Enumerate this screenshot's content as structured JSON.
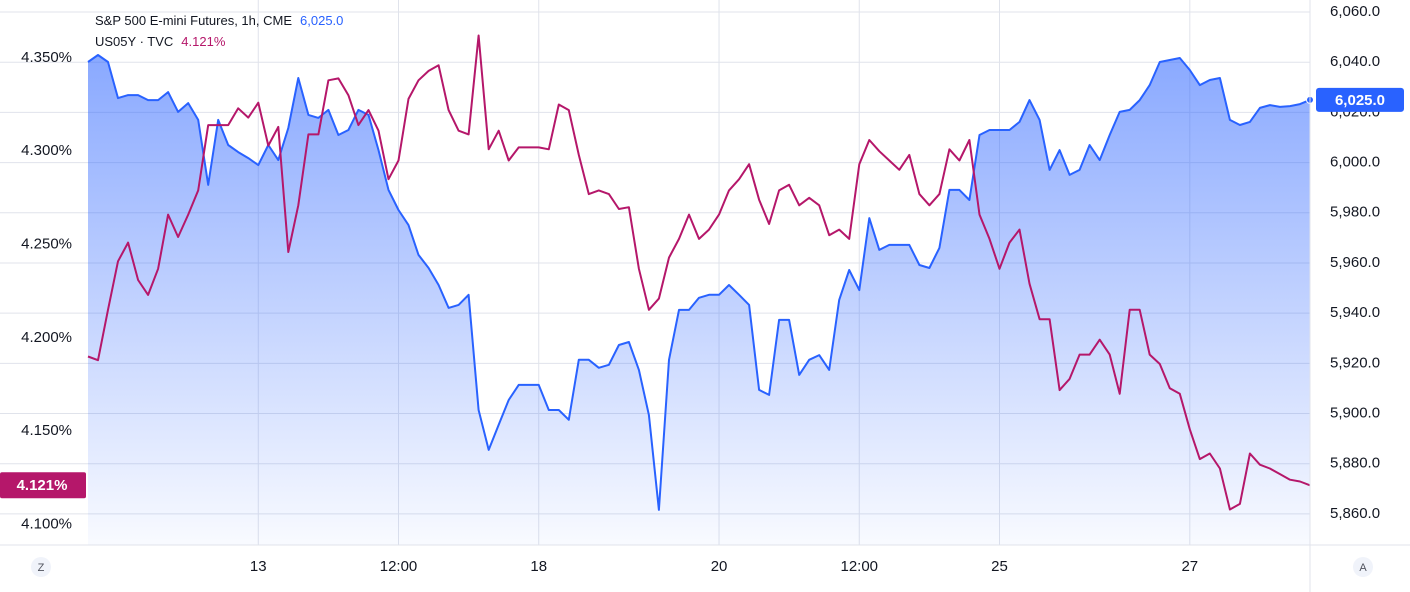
{
  "chart_data": {
    "type": "line",
    "categories": [
      null,
      null,
      null,
      null,
      null,
      null,
      null,
      null,
      null,
      null,
      null,
      null,
      null,
      null,
      null,
      null,
      null,
      "13",
      null,
      null,
      null,
      null,
      null,
      null,
      null,
      null,
      null,
      null,
      null,
      null,
      null,
      "12:00",
      null,
      null,
      null,
      null,
      null,
      null,
      null,
      null,
      null,
      null,
      null,
      null,
      null,
      "18",
      null,
      null,
      null,
      null,
      null,
      null,
      null,
      null,
      null,
      null,
      null,
      null,
      null,
      null,
      null,
      null,
      null,
      "20",
      null,
      null,
      null,
      null,
      null,
      null,
      null,
      null,
      null,
      null,
      null,
      null,
      null,
      "12:00",
      null,
      null,
      null,
      null,
      null,
      null,
      null,
      null,
      null,
      null,
      null,
      null,
      null,
      "25",
      null,
      null,
      null,
      null,
      null,
      null,
      null,
      null,
      null,
      null,
      null,
      null,
      null,
      null,
      null,
      null,
      null,
      null,
      "27",
      null,
      null,
      null,
      null,
      null,
      null,
      null,
      null,
      null,
      null,
      null,
      null
    ],
    "series": [
      {
        "name": "S&P 500 E-mini Futures, 1h, CME",
        "color": "#2962ff",
        "axis": "y2",
        "area": true,
        "last_value_label": "6,025.0",
        "values": [
          6040.1,
          6042.9,
          6040.1,
          6025.7,
          6026.9,
          6026.9,
          6024.9,
          6024.9,
          6028.1,
          6020.2,
          6023.7,
          6017.0,
          5991.1,
          6017.0,
          6007.0,
          6004.2,
          6001.8,
          5999.0,
          6007.0,
          6001.0,
          6013.8,
          6033.7,
          6019.0,
          6017.8,
          6021.0,
          6011.0,
          6013.0,
          6021.0,
          6019.0,
          6005.0,
          5989.1,
          5981.1,
          5975.1,
          5963.2,
          5958.0,
          5951.2,
          5942.1,
          5943.3,
          5947.3,
          5901.4,
          5885.5,
          5895.5,
          5905.4,
          5911.4,
          5911.4,
          5911.4,
          5901.4,
          5901.4,
          5897.5,
          5921.4,
          5921.4,
          5918.2,
          5919.4,
          5927.3,
          5928.5,
          5917.4,
          5899.4,
          5861.6,
          5921.4,
          5941.3,
          5941.3,
          5946.1,
          5947.3,
          5947.3,
          5951.2,
          5947.3,
          5943.3,
          5909.4,
          5907.4,
          5937.3,
          5937.3,
          5915.4,
          5921.4,
          5923.3,
          5917.4,
          5945.3,
          5957.2,
          5949.2,
          5977.9,
          5965.2,
          5967.2,
          5967.2,
          5967.2,
          5959.2,
          5958.0,
          5966.0,
          5989.1,
          5989.1,
          5985.1,
          6011.0,
          6013.0,
          6013.0,
          6013.0,
          6016.2,
          6024.9,
          6017.0,
          5997.1,
          6005.0,
          5995.1,
          5997.1,
          6007.0,
          6001.0,
          6011.0,
          6020.2,
          6021.0,
          6024.9,
          6030.9,
          6040.1,
          6040.9,
          6041.7,
          6036.9,
          6030.9,
          6032.9,
          6033.7,
          6017.0,
          6015.0,
          6016.2,
          6021.8,
          6022.9,
          6022.2,
          6022.5,
          6023.3,
          6025.0
        ]
      },
      {
        "name": "US05Y · TVC",
        "color": "#b5176a",
        "axis": "y",
        "last_value_label": "4.121%",
        "values": [
          4.19,
          4.188,
          4.215,
          4.241,
          4.251,
          4.231,
          4.223,
          4.237,
          4.266,
          4.254,
          4.266,
          4.279,
          4.314,
          4.314,
          4.314,
          4.323,
          4.318,
          4.326,
          4.303,
          4.313,
          4.246,
          4.271,
          4.309,
          4.309,
          4.338,
          4.339,
          4.33,
          4.314,
          4.322,
          4.311,
          4.285,
          4.295,
          4.328,
          4.338,
          4.343,
          4.346,
          4.322,
          4.311,
          4.309,
          4.362,
          4.301,
          4.311,
          4.295,
          4.302,
          4.302,
          4.302,
          4.301,
          4.325,
          4.322,
          4.298,
          4.277,
          4.279,
          4.277,
          4.269,
          4.27,
          4.237,
          4.215,
          4.221,
          4.243,
          4.253,
          4.266,
          4.253,
          4.258,
          4.266,
          4.279,
          4.285,
          4.293,
          4.274,
          4.261,
          4.279,
          4.282,
          4.271,
          4.275,
          4.271,
          4.255,
          4.258,
          4.253,
          4.293,
          4.306,
          4.3,
          4.295,
          4.29,
          4.298,
          4.277,
          4.271,
          4.277,
          4.301,
          4.295,
          4.306,
          4.266,
          4.253,
          4.237,
          4.251,
          4.258,
          4.229,
          4.21,
          4.21,
          4.172,
          4.178,
          4.191,
          4.191,
          4.199,
          4.191,
          4.17,
          4.215,
          4.215,
          4.191,
          4.186,
          4.173,
          4.17,
          4.151,
          4.135,
          4.138,
          4.13,
          4.108,
          4.111,
          4.138,
          4.132,
          4.13,
          4.127,
          4.124,
          4.123,
          4.121
        ]
      }
    ],
    "ylim": [
      4.089,
      4.381
    ],
    "yticks": [
      {
        "value": 4.1,
        "label": "4.100%"
      },
      {
        "value": 4.15,
        "label": "4.150%"
      },
      {
        "value": 4.2,
        "label": "4.200%"
      },
      {
        "value": 4.25,
        "label": "4.250%"
      },
      {
        "value": 4.3,
        "label": "4.300%"
      },
      {
        "value": 4.35,
        "label": "4.350%"
      }
    ],
    "y2lim": [
      5847.6,
      6064.8
    ],
    "y2ticks": [
      {
        "value": 5860,
        "label": "5,860.0"
      },
      {
        "value": 5880,
        "label": "5,880.0"
      },
      {
        "value": 5900,
        "label": "5,900.0"
      },
      {
        "value": 5920,
        "label": "5,920.0"
      },
      {
        "value": 5940,
        "label": "5,940.0"
      },
      {
        "value": 5960,
        "label": "5,960.0"
      },
      {
        "value": 5980,
        "label": "5,980.0"
      },
      {
        "value": 6000,
        "label": "6,000.0"
      },
      {
        "value": 6020,
        "label": "6,020.0"
      },
      {
        "value": 6040,
        "label": "6,040.0"
      },
      {
        "value": 6060,
        "label": "6,060.0"
      }
    ],
    "grid": true,
    "axis_buttons": [
      "Z",
      "A"
    ]
  }
}
